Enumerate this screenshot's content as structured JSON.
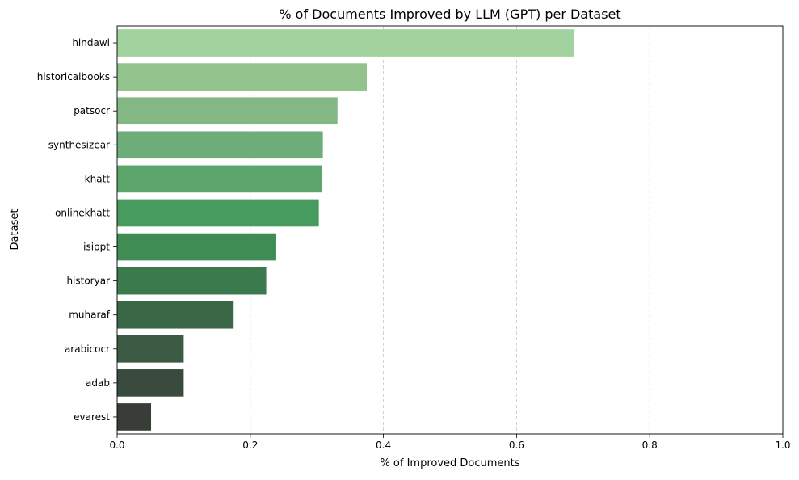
{
  "chart_data": {
    "type": "bar",
    "orientation": "horizontal",
    "title": "% of Documents Improved by LLM (GPT) per Dataset",
    "xlabel": "% of Improved Documents",
    "ylabel": "Dataset",
    "xlim": [
      0,
      1.0
    ],
    "xticks": [
      "0.0",
      "0.2",
      "0.4",
      "0.6",
      "0.8",
      "1.0"
    ],
    "grid": "x-dashed",
    "categories": [
      "hindawi",
      "historicalbooks",
      "patsocr",
      "synthesizear",
      "khatt",
      "onlinekhatt",
      "isippt",
      "historyar",
      "muharaf",
      "arabicocr",
      "adab",
      "evarest"
    ],
    "values": [
      0.686,
      0.375,
      0.331,
      0.309,
      0.308,
      0.303,
      0.239,
      0.224,
      0.175,
      0.1,
      0.1,
      0.051
    ],
    "colors": [
      "#a2d29d",
      "#92c38d",
      "#83b884",
      "#6ead79",
      "#5ea56c",
      "#489b5f",
      "#3f8d55",
      "#3b7a4d",
      "#3a6847",
      "#3a5a44",
      "#384b3e",
      "#383e37"
    ]
  }
}
